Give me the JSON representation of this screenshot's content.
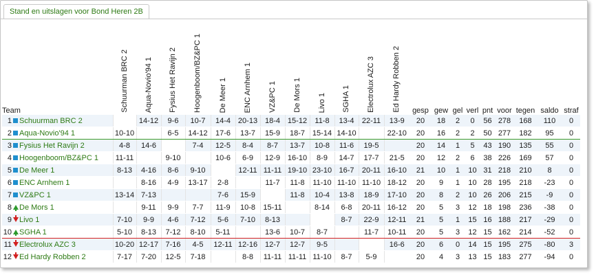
{
  "tab_title": "Stand en uitslagen voor Bond Heren 2B",
  "headers": {
    "team": "Team",
    "stats": [
      "gesp",
      "gew",
      "gel",
      "verl",
      "pnt",
      "voor",
      "tegen",
      "saldo",
      "straf"
    ]
  },
  "opponents": [
    "Schuurman BRC 2",
    "Aqua-Novio'94 1",
    "Fysius Het Ravijn 2",
    "Hoogenboom/BZ&PC 1",
    "De Meer 1",
    "ENC Arnhem 1",
    "VZ&PC 1",
    "De Mors 1",
    "Livo 1",
    "SGHA 1",
    "Electrolux AZC 3",
    "Ed Hardy Robben 2"
  ],
  "colors": {
    "team_text": "#2d7a14",
    "row_alt": "#eef4fa",
    "promo_line": "#3c9a2a",
    "releg_line": "#d22020",
    "square": "#1f8fce"
  },
  "rows": [
    {
      "rank": "1",
      "indicator": "square",
      "team": "Schuurman BRC 2",
      "results": [
        "",
        "14-12",
        "9-6",
        "10-7",
        "14-4",
        "20-13",
        "18-4",
        "15-12",
        "11-8",
        "13-4",
        "22-11",
        "13-9"
      ],
      "stats": [
        "20",
        "18",
        "2",
        "0",
        "56",
        "278",
        "168",
        "110",
        "0"
      ]
    },
    {
      "rank": "2",
      "indicator": "square",
      "team": "Aqua-Novio'94 1",
      "results": [
        "10-10",
        "",
        "6-5",
        "14-12",
        "17-6",
        "13-7",
        "15-9",
        "18-7",
        "15-14",
        "14-10",
        "",
        "22-10"
      ],
      "stats": [
        "20",
        "16",
        "2",
        "2",
        "50",
        "277",
        "182",
        "95",
        "0"
      ]
    },
    {
      "rank": "3",
      "indicator": "square",
      "team": "Fysius Het Ravijn 2",
      "results": [
        "4-8",
        "14-6",
        "",
        "7-4",
        "12-5",
        "8-4",
        "8-7",
        "13-7",
        "10-8",
        "11-6",
        "19-5",
        ""
      ],
      "stats": [
        "20",
        "14",
        "1",
        "5",
        "43",
        "190",
        "135",
        "55",
        "0"
      ]
    },
    {
      "rank": "4",
      "indicator": "square",
      "team": "Hoogenboom/BZ&PC 1",
      "results": [
        "11-11",
        "",
        "9-10",
        "",
        "10-6",
        "6-9",
        "12-9",
        "16-10",
        "8-9",
        "14-7",
        "17-7",
        "21-5"
      ],
      "stats": [
        "20",
        "12",
        "2",
        "6",
        "38",
        "226",
        "169",
        "57",
        "0"
      ]
    },
    {
      "rank": "5",
      "indicator": "square",
      "team": "De Meer 1",
      "results": [
        "8-13",
        "4-16",
        "8-6",
        "9-10",
        "",
        "12-11",
        "11-11",
        "19-10",
        "23-10",
        "16-7",
        "20-11",
        "16-10"
      ],
      "stats": [
        "21",
        "10",
        "1",
        "10",
        "31",
        "218",
        "210",
        "8",
        "0"
      ]
    },
    {
      "rank": "6",
      "indicator": "square",
      "team": "ENC Arnhem 1",
      "results": [
        "",
        "8-16",
        "4-9",
        "13-17",
        "2-8",
        "",
        "11-7",
        "11-8",
        "11-10",
        "11-10",
        "11-10",
        "18-12"
      ],
      "stats": [
        "20",
        "9",
        "1",
        "10",
        "28",
        "195",
        "218",
        "-23",
        "0"
      ]
    },
    {
      "rank": "7",
      "indicator": "square",
      "team": "VZ&PC 1",
      "results": [
        "13-14",
        "7-13",
        "",
        "",
        "7-6",
        "15-9",
        "",
        "11-8",
        "10-4",
        "13-8",
        "18-9",
        "17-10"
      ],
      "stats": [
        "20",
        "8",
        "2",
        "10",
        "26",
        "206",
        "215",
        "-9",
        "0"
      ]
    },
    {
      "rank": "8",
      "indicator": "up",
      "team": "De Mors 1",
      "results": [
        "",
        "9-11",
        "9-9",
        "7-7",
        "11-9",
        "10-8",
        "15-11",
        "",
        "8-14",
        "6-8",
        "20-11",
        "16-12"
      ],
      "stats": [
        "20",
        "5",
        "3",
        "12",
        "18",
        "198",
        "236",
        "-38",
        "0"
      ]
    },
    {
      "rank": "9",
      "indicator": "down",
      "team": "Livo 1",
      "results": [
        "7-10",
        "9-9",
        "4-6",
        "7-12",
        "5-6",
        "7-10",
        "8-13",
        "",
        "",
        "8-7",
        "22-9",
        "12-11"
      ],
      "stats": [
        "21",
        "5",
        "1",
        "15",
        "16",
        "188",
        "217",
        "-29",
        "0"
      ]
    },
    {
      "rank": "10",
      "indicator": "up",
      "team": "SGHA 1",
      "results": [
        "5-10",
        "8-13",
        "7-12",
        "8-10",
        "5-11",
        "",
        "13-6",
        "10-7",
        "8-7",
        "",
        "11-7",
        "10-11"
      ],
      "stats": [
        "20",
        "5",
        "3",
        "12",
        "15",
        "162",
        "214",
        "-52",
        "0"
      ]
    },
    {
      "rank": "11",
      "indicator": "down",
      "team": "Electrolux AZC 3",
      "results": [
        "10-20",
        "12-17",
        "7-16",
        "4-5",
        "12-11",
        "12-16",
        "12-7",
        "12-7",
        "9-5",
        "",
        "",
        "16-6"
      ],
      "stats": [
        "20",
        "6",
        "0",
        "14",
        "15",
        "195",
        "275",
        "-80",
        "3"
      ]
    },
    {
      "rank": "12",
      "indicator": "down",
      "team": "Ed Hardy Robben 2",
      "results": [
        "7-17",
        "7-20",
        "12-5",
        "7-18",
        "",
        "8-8",
        "11-11",
        "11-11",
        "11-10",
        "8-7",
        "5-9",
        ""
      ],
      "stats": [
        "20",
        "4",
        "3",
        "13",
        "15",
        "183",
        "277",
        "-94",
        "0"
      ]
    }
  ]
}
